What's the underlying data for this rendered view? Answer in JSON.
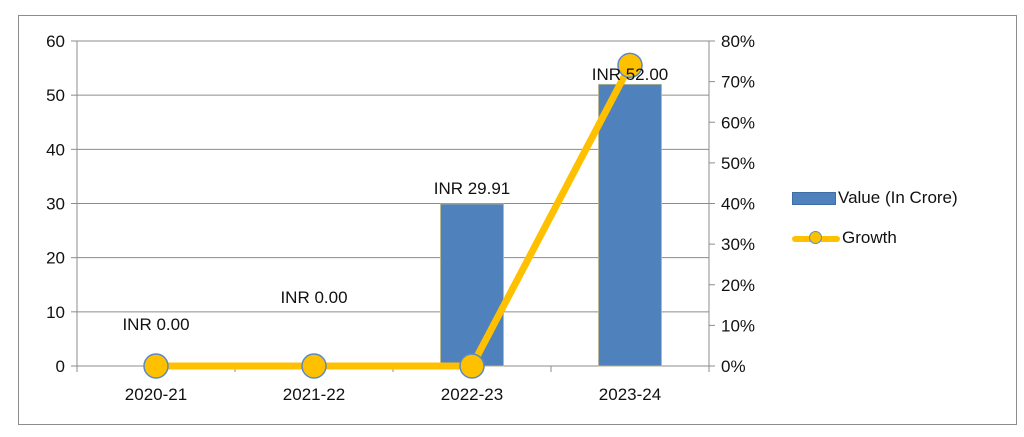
{
  "chart_data": {
    "type": "bar+line",
    "title": "",
    "categories": [
      "2020-21",
      "2021-22",
      "2022-23",
      "2023-24"
    ],
    "series": [
      {
        "name": "Value (In Crore)",
        "type": "bar",
        "axis": "left",
        "color": "#4f81bd",
        "values": [
          0.0,
          0.0,
          29.91,
          52.0
        ],
        "data_labels": [
          "INR 0.00",
          "INR 0.00",
          "INR 29.91",
          "INR 52.00"
        ]
      },
      {
        "name": "Growth",
        "type": "line",
        "axis": "right",
        "color": "#ffc000",
        "marker_edge_color": "#5b8ac6",
        "values": [
          0,
          0,
          0,
          0.74
        ]
      }
    ],
    "left_axis": {
      "ylim": [
        0,
        60
      ],
      "ticks": [
        "0",
        "10",
        "20",
        "30",
        "40",
        "50",
        "60"
      ]
    },
    "right_axis": {
      "ylim": [
        0,
        0.8
      ],
      "ticks": [
        "0%",
        "10%",
        "20%",
        "30%",
        "40%",
        "50%",
        "60%",
        "70%",
        "80%"
      ]
    },
    "xlabel": "",
    "ylabel": "",
    "grid": true,
    "legend_position": "right"
  },
  "legend": {
    "items": [
      {
        "label": "Value (In Crore)",
        "kind": "bar"
      },
      {
        "label": "Growth",
        "kind": "line-marker"
      }
    ]
  }
}
